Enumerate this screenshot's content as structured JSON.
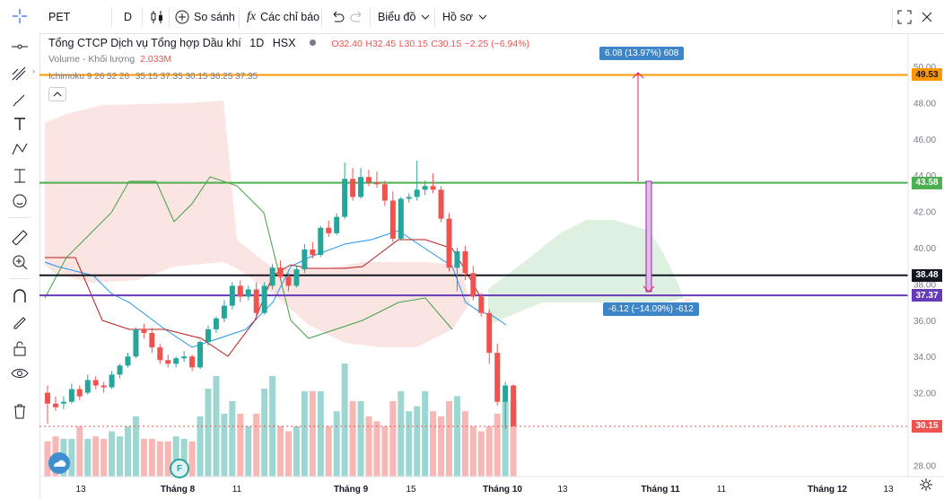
{
  "topbar": {
    "symbol": "PET",
    "interval": "D",
    "compare_label": "So sánh",
    "indicators_label": "Các chỉ báo",
    "chart_menu_label": "Biểu đồ",
    "profile_menu_label": "Hồ sơ"
  },
  "legend": {
    "name": "Tổng CTCP Dịch vụ Tổng hợp Dầu khí",
    "interval": "1D",
    "exchange": "HSX",
    "open": "O32.40",
    "high": "H32.45",
    "low": "L30.15",
    "close": "C30.15",
    "change": "−2.25 (−6.94%)",
    "volume_label": "Volume - Khối lượng",
    "volume_value": "2.033M",
    "ichimoku_label": "Ichimoku 9 26 52 26",
    "ichimoku_values": [
      "35.15",
      "37.35",
      "30.15",
      "36.25",
      "37.35"
    ],
    "ichimoku_colors": [
      "#2196f3",
      "#b71c1c",
      "#2e7d32",
      "#81c784",
      "#ef9a9a"
    ]
  },
  "measure": {
    "up_label": "6.08 (13.97%) 608",
    "down_label": "-6.12 (−14.09%) -612"
  },
  "price_axis": {
    "ticks": [
      "50.00",
      "48.00",
      "46.00",
      "44.00",
      "42.00",
      "40.00",
      "38.00",
      "36.00",
      "34.00",
      "32.00",
      "30.00",
      "28.00"
    ]
  },
  "time_axis": {
    "ticks": [
      "13",
      "Tháng 8",
      "11",
      "Tháng 9",
      "15",
      "Tháng 10",
      "13",
      "Tháng 11",
      "11",
      "Tháng 12",
      "13"
    ]
  },
  "lines": [
    {
      "name": "orange",
      "price": "49.53",
      "color": "#ff9800"
    },
    {
      "name": "green",
      "price": "43.58",
      "color": "#4caf50"
    },
    {
      "name": "black",
      "price": "38.48",
      "color": "#131722"
    },
    {
      "name": "purple",
      "price": "37.37",
      "color": "#673ab7"
    },
    {
      "name": "last",
      "price": "30.15",
      "color": "#ef5350"
    }
  ],
  "colors": {
    "up": "#26a69a",
    "down": "#ef5350",
    "tenkan": "#2196f3",
    "kijun": "#b71c1c",
    "chikou": "#43a047"
  }
}
